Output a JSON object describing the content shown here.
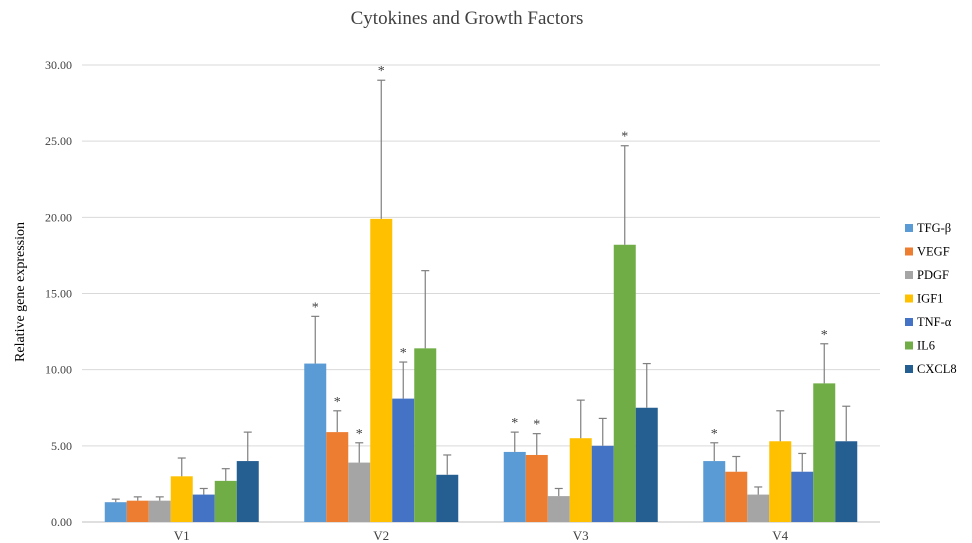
{
  "chart_data": {
    "type": "bar",
    "title": "Cytokines and Growth Factors",
    "xlabel": "",
    "ylabel": "Relative gene expression",
    "ylim": [
      0,
      30
    ],
    "yticks": [
      "0.00",
      "5.00",
      "10.00",
      "15.00",
      "20.00",
      "25.00",
      "30.00"
    ],
    "grid": true,
    "legend": "right",
    "categories": [
      "V1",
      "V2",
      "V3",
      "V4"
    ],
    "series": [
      {
        "name": "TFG-β",
        "color": "#5b9bd5",
        "values": [
          1.3,
          10.4,
          4.6,
          4.0
        ],
        "errors": [
          0.2,
          3.1,
          1.3,
          1.2
        ],
        "sig": [
          false,
          true,
          true,
          true
        ]
      },
      {
        "name": "VEGF",
        "color": "#ed7d31",
        "values": [
          1.4,
          5.9,
          4.4,
          3.3
        ],
        "errors": [
          0.25,
          1.4,
          1.4,
          1.0
        ],
        "sig": [
          false,
          true,
          true,
          false
        ]
      },
      {
        "name": "PDGF",
        "color": "#a5a5a5",
        "values": [
          1.4,
          3.9,
          1.7,
          1.8
        ],
        "errors": [
          0.25,
          1.3,
          0.5,
          0.5
        ],
        "sig": [
          false,
          true,
          false,
          false
        ]
      },
      {
        "name": "IGF1",
        "color": "#ffc000",
        "values": [
          3.0,
          19.9,
          5.5,
          5.3
        ],
        "errors": [
          1.2,
          9.1,
          2.5,
          2.0
        ],
        "sig": [
          false,
          true,
          false,
          false
        ]
      },
      {
        "name": "TNF-α",
        "color": "#4472c4",
        "values": [
          1.8,
          8.1,
          5.0,
          3.3
        ],
        "errors": [
          0.4,
          2.4,
          1.8,
          1.2
        ],
        "sig": [
          false,
          true,
          false,
          false
        ]
      },
      {
        "name": "IL6",
        "color": "#70ad47",
        "values": [
          2.7,
          11.4,
          18.2,
          9.1
        ],
        "errors": [
          0.8,
          5.1,
          6.5,
          2.6
        ],
        "sig": [
          false,
          false,
          true,
          true
        ]
      },
      {
        "name": "CXCL8",
        "color": "#255e91",
        "values": [
          4.0,
          3.1,
          7.5,
          5.3
        ],
        "errors": [
          1.9,
          1.3,
          2.9,
          2.3
        ],
        "sig": [
          false,
          false,
          false,
          false
        ]
      }
    ],
    "significance_marker": "*"
  }
}
